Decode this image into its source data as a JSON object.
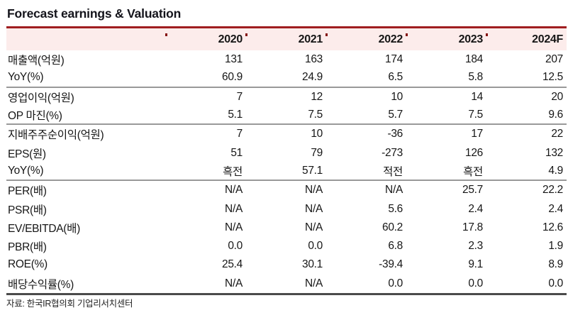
{
  "title": "Forecast earnings & Valuation",
  "source_note": "자료: 한국IR협의회 기업리서치센터",
  "colors": {
    "accent_red": "#A01D20",
    "tick_red": "#85100F",
    "header_bg": "#FCECEB",
    "divider_gray": "#999999",
    "bottom_border": "#4A4A4A",
    "text": "#161616"
  },
  "chart_data": {
    "type": "table",
    "title": "Forecast earnings & Valuation",
    "columns": [
      "2020",
      "2021",
      "2022",
      "2023",
      "2024F"
    ],
    "rows": [
      {
        "label": "매출액(억원)",
        "values": [
          "131",
          "163",
          "174",
          "184",
          "207"
        ],
        "divider_after": false
      },
      {
        "label": "YoY(%)",
        "values": [
          "60.9",
          "24.9",
          "6.5",
          "5.8",
          "12.5"
        ],
        "divider_after": true
      },
      {
        "label": "영업이익(억원)",
        "values": [
          "7",
          "12",
          "10",
          "14",
          "20"
        ],
        "divider_after": false
      },
      {
        "label": "OP 마진(%)",
        "values": [
          "5.1",
          "7.5",
          "5.7",
          "7.5",
          "9.6"
        ],
        "divider_after": true
      },
      {
        "label": "지배주주순이익(억원)",
        "values": [
          "7",
          "10",
          "-36",
          "17",
          "22"
        ],
        "divider_after": false
      },
      {
        "label": "EPS(원)",
        "values": [
          "51",
          "79",
          "-273",
          "126",
          "132"
        ],
        "divider_after": false
      },
      {
        "label": "YoY(%)",
        "values": [
          "흑전",
          "57.1",
          "적전",
          "흑전",
          "4.9"
        ],
        "divider_after": true
      },
      {
        "label": "PER(배)",
        "values": [
          "N/A",
          "N/A",
          "N/A",
          "25.7",
          "22.2"
        ],
        "divider_after": false
      },
      {
        "label": "PSR(배)",
        "values": [
          "N/A",
          "N/A",
          "5.6",
          "2.4",
          "2.4"
        ],
        "divider_after": false
      },
      {
        "label": "EV/EBITDA(배)",
        "values": [
          "N/A",
          "N/A",
          "60.2",
          "17.8",
          "12.6"
        ],
        "divider_after": false
      },
      {
        "label": "PBR(배)",
        "values": [
          "0.0",
          "0.0",
          "6.8",
          "2.3",
          "1.9"
        ],
        "divider_after": false
      },
      {
        "label": "ROE(%)",
        "values": [
          "25.4",
          "30.1",
          "-39.4",
          "9.1",
          "8.9"
        ],
        "divider_after": false
      },
      {
        "label": "배당수익률(%)",
        "values": [
          "N/A",
          "N/A",
          "0.0",
          "0.0",
          "0.0"
        ],
        "divider_after": false
      }
    ]
  }
}
